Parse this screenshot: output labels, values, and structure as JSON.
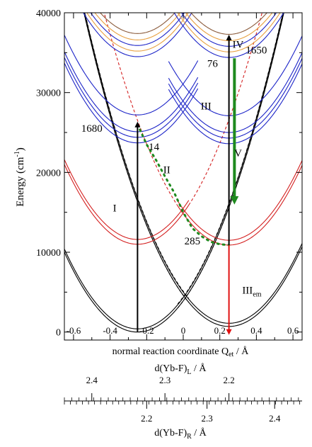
{
  "chart_data": {
    "type": "line",
    "xlabel": "normal reaction coordinate Q",
    "xlabel_sub": "et",
    "xlabel_unit": " / Å",
    "ylabel": "Energy (cm",
    "ylabel_sup": "-1",
    "ylabel_close": ")",
    "xlim": [
      -0.65,
      0.65
    ],
    "ylim": [
      -1000,
      40000
    ],
    "x_ticks": [
      -0.6,
      -0.4,
      -0.2,
      0,
      0.2,
      0.4,
      0.6
    ],
    "x_tick_labels": [
      "-0.6",
      "-0.4",
      "-0.2",
      "0",
      "0.2",
      "0.4",
      "0.6"
    ],
    "y_ticks": [
      0,
      10000,
      20000,
      30000,
      40000
    ],
    "y_tick_labels": [
      "0",
      "10000",
      "20000",
      "30000",
      "40000"
    ],
    "colors": {
      "ground": "#000000",
      "ct": "#d42020",
      "excited": "#1c24c8",
      "high": "#e8a040",
      "brown": "#8a5a3a",
      "green": "#1e8a1e",
      "emission": "#e01010"
    },
    "parabolas": [
      {
        "name": "ground-L",
        "color": "ground",
        "x0": -0.25,
        "E0": 0,
        "k": 62500,
        "style": "solid",
        "split": 400
      },
      {
        "name": "ground-R",
        "color": "ground",
        "x0": 0.25,
        "E0": 700,
        "k": 62500,
        "style": "solid",
        "split": 400
      },
      {
        "name": "ground-L-cont",
        "color": "ground",
        "x0": -0.25,
        "E0": 0,
        "k": 62500,
        "style": "dashed",
        "split": 500,
        "from": -0.03,
        "to": 0.65
      },
      {
        "name": "ground-R-cont",
        "color": "ground",
        "x0": 0.25,
        "E0": 700,
        "k": 62500,
        "style": "dashed",
        "split": 500,
        "from": -0.65,
        "to": 0.03
      },
      {
        "name": "ct-L",
        "color": "ct",
        "x0": -0.25,
        "E0": 11000,
        "k": 62500,
        "style": "solid",
        "split": 600,
        "from": -0.65,
        "to": 0.03
      },
      {
        "name": "ct-R",
        "color": "ct",
        "x0": 0.25,
        "E0": 10900,
        "k": 62500,
        "style": "solid",
        "split": 600,
        "from": -0.03,
        "to": 0.65
      },
      {
        "name": "ct-L-dash",
        "color": "ct",
        "x0": -0.25,
        "E0": 11000,
        "k": 62500,
        "style": "dashed",
        "split": 0,
        "from": 0.03,
        "to": 0.65
      },
      {
        "name": "ct-R-dash",
        "color": "ct",
        "x0": 0.25,
        "E0": 10900,
        "k": 62500,
        "style": "dashed",
        "split": 0,
        "from": -0.65,
        "to": -0.03
      },
      {
        "name": "f-L-1",
        "color": "excited",
        "x0": -0.25,
        "E0": 23700,
        "k": 62500,
        "style": "solid",
        "split": 0,
        "from": -0.65,
        "to": 0.08
      },
      {
        "name": "f-L-2",
        "color": "excited",
        "x0": -0.25,
        "E0": 24400,
        "k": 62500,
        "style": "solid",
        "split": 0,
        "from": -0.65,
        "to": 0.08
      },
      {
        "name": "f-L-3",
        "color": "excited",
        "x0": -0.25,
        "E0": 25100,
        "k": 62500,
        "style": "solid",
        "split": 0,
        "from": -0.65,
        "to": 0.08
      },
      {
        "name": "f-L-4",
        "color": "excited",
        "x0": -0.25,
        "E0": 27200,
        "k": 62500,
        "style": "solid",
        "split": 0,
        "from": -0.65,
        "to": 0.08
      },
      {
        "name": "f-R-1",
        "color": "excited",
        "x0": 0.25,
        "E0": 23600,
        "k": 62500,
        "style": "solid",
        "split": 0,
        "from": -0.08,
        "to": 0.65
      },
      {
        "name": "f-R-2",
        "color": "excited",
        "x0": 0.25,
        "E0": 24300,
        "k": 62500,
        "style": "solid",
        "split": 0,
        "from": -0.08,
        "to": 0.65
      },
      {
        "name": "f-R-3",
        "color": "excited",
        "x0": 0.25,
        "E0": 25000,
        "k": 62500,
        "style": "solid",
        "split": 0,
        "from": -0.08,
        "to": 0.65
      },
      {
        "name": "f-R-4",
        "color": "excited",
        "x0": 0.25,
        "E0": 27100,
        "k": 62500,
        "style": "solid",
        "split": 0,
        "from": -0.08,
        "to": 0.65
      },
      {
        "name": "h-L-1",
        "color": "excited",
        "x0": -0.25,
        "E0": 34500,
        "k": 62500,
        "style": "solid",
        "split": 0,
        "from": -0.65,
        "to": 0.05
      },
      {
        "name": "h-L-2",
        "color": "high",
        "x0": -0.25,
        "E0": 35200,
        "k": 62500,
        "style": "solid",
        "split": 0,
        "from": -0.65,
        "to": 0.05
      },
      {
        "name": "h-L-3",
        "color": "excited",
        "x0": -0.25,
        "E0": 35900,
        "k": 62500,
        "style": "solid",
        "split": 0,
        "from": -0.65,
        "to": 0.05
      },
      {
        "name": "h-L-4",
        "color": "high",
        "x0": -0.25,
        "E0": 36600,
        "k": 62500,
        "style": "solid",
        "split": 0,
        "from": -0.65,
        "to": 0.05
      },
      {
        "name": "h-L-5",
        "color": "brown",
        "x0": -0.25,
        "E0": 37400,
        "k": 62500,
        "style": "solid",
        "split": 0,
        "from": -0.65,
        "to": 0.05
      },
      {
        "name": "h-R-1",
        "color": "excited",
        "x0": 0.25,
        "E0": 34400,
        "k": 62500,
        "style": "solid",
        "split": 0,
        "from": -0.05,
        "to": 0.65
      },
      {
        "name": "h-R-2",
        "color": "high",
        "x0": 0.25,
        "E0": 35100,
        "k": 62500,
        "style": "solid",
        "split": 0,
        "from": -0.05,
        "to": 0.65
      },
      {
        "name": "h-R-3",
        "color": "excited",
        "x0": 0.25,
        "E0": 35800,
        "k": 62500,
        "style": "solid",
        "split": 0,
        "from": -0.05,
        "to": 0.65
      },
      {
        "name": "h-R-4",
        "color": "high",
        "x0": 0.25,
        "E0": 36500,
        "k": 62500,
        "style": "solid",
        "split": 0,
        "from": -0.05,
        "to": 0.65
      },
      {
        "name": "h-R-5",
        "color": "brown",
        "x0": 0.25,
        "E0": 37300,
        "k": 62500,
        "style": "solid",
        "split": 0,
        "from": -0.05,
        "to": 0.65
      },
      {
        "name": "h-L-dash-1",
        "color": "excited",
        "x0": -0.25,
        "E0": 34800,
        "k": 62500,
        "style": "dashed",
        "split": 0,
        "from": 0.05,
        "to": 0.3
      },
      {
        "name": "h-L-dash-2",
        "color": "excited",
        "x0": -0.25,
        "E0": 35600,
        "k": 62500,
        "style": "dashed",
        "split": 0,
        "from": 0.05,
        "to": 0.3
      },
      {
        "name": "h-R-dash-1",
        "color": "excited",
        "x0": 0.25,
        "E0": 34700,
        "k": 62500,
        "style": "dashed",
        "split": 0,
        "from": -0.3,
        "to": -0.05
      },
      {
        "name": "h-R-dash-2",
        "color": "excited",
        "x0": 0.25,
        "E0": 35500,
        "k": 62500,
        "style": "dashed",
        "split": 0,
        "from": -0.3,
        "to": -0.05
      }
    ],
    "green_path": [
      [
        -0.25,
        26000
      ],
      [
        -0.2,
        23500
      ],
      [
        -0.15,
        21600
      ],
      [
        -0.1,
        19500
      ],
      [
        -0.05,
        17500
      ],
      [
        0.0,
        15000
      ],
      [
        0.05,
        13000
      ],
      [
        0.1,
        12000
      ],
      [
        0.15,
        11300
      ],
      [
        0.2,
        11000
      ],
      [
        0.25,
        10900
      ]
    ],
    "arrows": [
      {
        "name": "arrow-I",
        "x": -0.25,
        "from": 0,
        "to": 26000,
        "color": "ground",
        "width": 2
      },
      {
        "name": "arrow-III",
        "x": 0.25,
        "from": 10900,
        "to": 36900,
        "color": "ground",
        "width": 2
      },
      {
        "name": "arrow-V",
        "x": 0.28,
        "from": 34300,
        "to": 16500,
        "color": "green",
        "width": 4
      },
      {
        "name": "arrow-IIIem",
        "x": 0.25,
        "from": 10900,
        "to": 0,
        "color": "emission",
        "width": 2
      }
    ],
    "annotations": [
      {
        "text": "1680",
        "x": -0.5,
        "y": 25100
      },
      {
        "text": "14",
        "x": -0.16,
        "y": 22800
      },
      {
        "text": "I",
        "x": -0.375,
        "y": 15100
      },
      {
        "text": "II",
        "x": -0.09,
        "y": 19900
      },
      {
        "text": "III",
        "x": 0.125,
        "y": 27900
      },
      {
        "text": "IV",
        "x": 0.3,
        "y": 35600
      },
      {
        "text": "V",
        "x": 0.3,
        "y": 22000
      },
      {
        "text": "76",
        "x": 0.16,
        "y": 33200
      },
      {
        "text": "1650",
        "x": 0.4,
        "y": 34900
      },
      {
        "text": "285",
        "x": 0.05,
        "y": 11000
      },
      {
        "text": "III",
        "sub": "em",
        "x": 0.375,
        "y": 4800
      }
    ],
    "secondary_axes": [
      {
        "label": "d(Yb-F)",
        "label_sub": "L",
        "label_unit": " / Å",
        "ticks": [
          2.4,
          2.3,
          2.2
        ],
        "tick_labels": [
          "2.4",
          "2.3",
          "2.2"
        ],
        "direction": "decreasing",
        "tick_positions_q": [
          -0.5,
          -0.1,
          0.25
        ],
        "minor_step_q": 0.04
      },
      {
        "label": "d(Yb-F)",
        "label_sub": "R",
        "label_unit": " / Å",
        "ticks": [
          2.2,
          2.3,
          2.4
        ],
        "tick_labels": [
          "2.2",
          "2.3",
          "2.4"
        ],
        "direction": "increasing",
        "tick_positions_q": [
          -0.2,
          0.13,
          0.5
        ],
        "minor_step_q": 0.033
      }
    ]
  }
}
